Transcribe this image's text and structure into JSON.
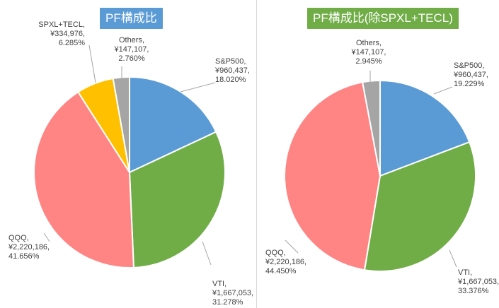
{
  "chart_data": [
    {
      "type": "pie",
      "title": "PF構成比",
      "colors": {
        "title_bg": "#5b9bd5"
      },
      "slices": [
        {
          "name": "S&P500",
          "value": 960437,
          "value_label": "¥960,437,",
          "percent": 18.02,
          "percent_label": "18.020%",
          "color": "#5b9bd5"
        },
        {
          "name": "VTI",
          "value": 1667053,
          "value_label": "¥1,667,053,",
          "percent": 31.278,
          "percent_label": "31.278%",
          "color": "#70ad47"
        },
        {
          "name": "QQQ",
          "value": 2220186,
          "value_label": "¥2,220,186,",
          "percent": 41.656,
          "percent_label": "41.656%",
          "color": "#ff8585"
        },
        {
          "name": "SPXL+TECL",
          "value": 334976,
          "value_label": "¥334,976,",
          "percent": 6.285,
          "percent_label": "6.285%",
          "color": "#ffc000"
        },
        {
          "name": "Others",
          "value": 147107,
          "value_label": "¥147,107,",
          "percent": 2.76,
          "percent_label": "2.760%",
          "color": "#a5a5a5"
        }
      ]
    },
    {
      "type": "pie",
      "title": "PF構成比(除SPXL+TECL)",
      "colors": {
        "title_bg": "#70ad47"
      },
      "slices": [
        {
          "name": "S&P500",
          "value": 960437,
          "value_label": "¥960,437,",
          "percent": 19.229,
          "percent_label": "19.229%",
          "color": "#5b9bd5"
        },
        {
          "name": "VTI",
          "value": 1667053,
          "value_label": "¥1,667,053,",
          "percent": 33.376,
          "percent_label": "33.376%",
          "color": "#70ad47"
        },
        {
          "name": "QQQ",
          "value": 2220186,
          "value_label": "¥2,220,186,",
          "percent": 44.45,
          "percent_label": "44.450%",
          "color": "#ff8585"
        },
        {
          "name": "Others",
          "value": 147107,
          "value_label": "¥147,107,",
          "percent": 2.945,
          "percent_label": "2.945%",
          "color": "#a5a5a5"
        }
      ]
    }
  ]
}
